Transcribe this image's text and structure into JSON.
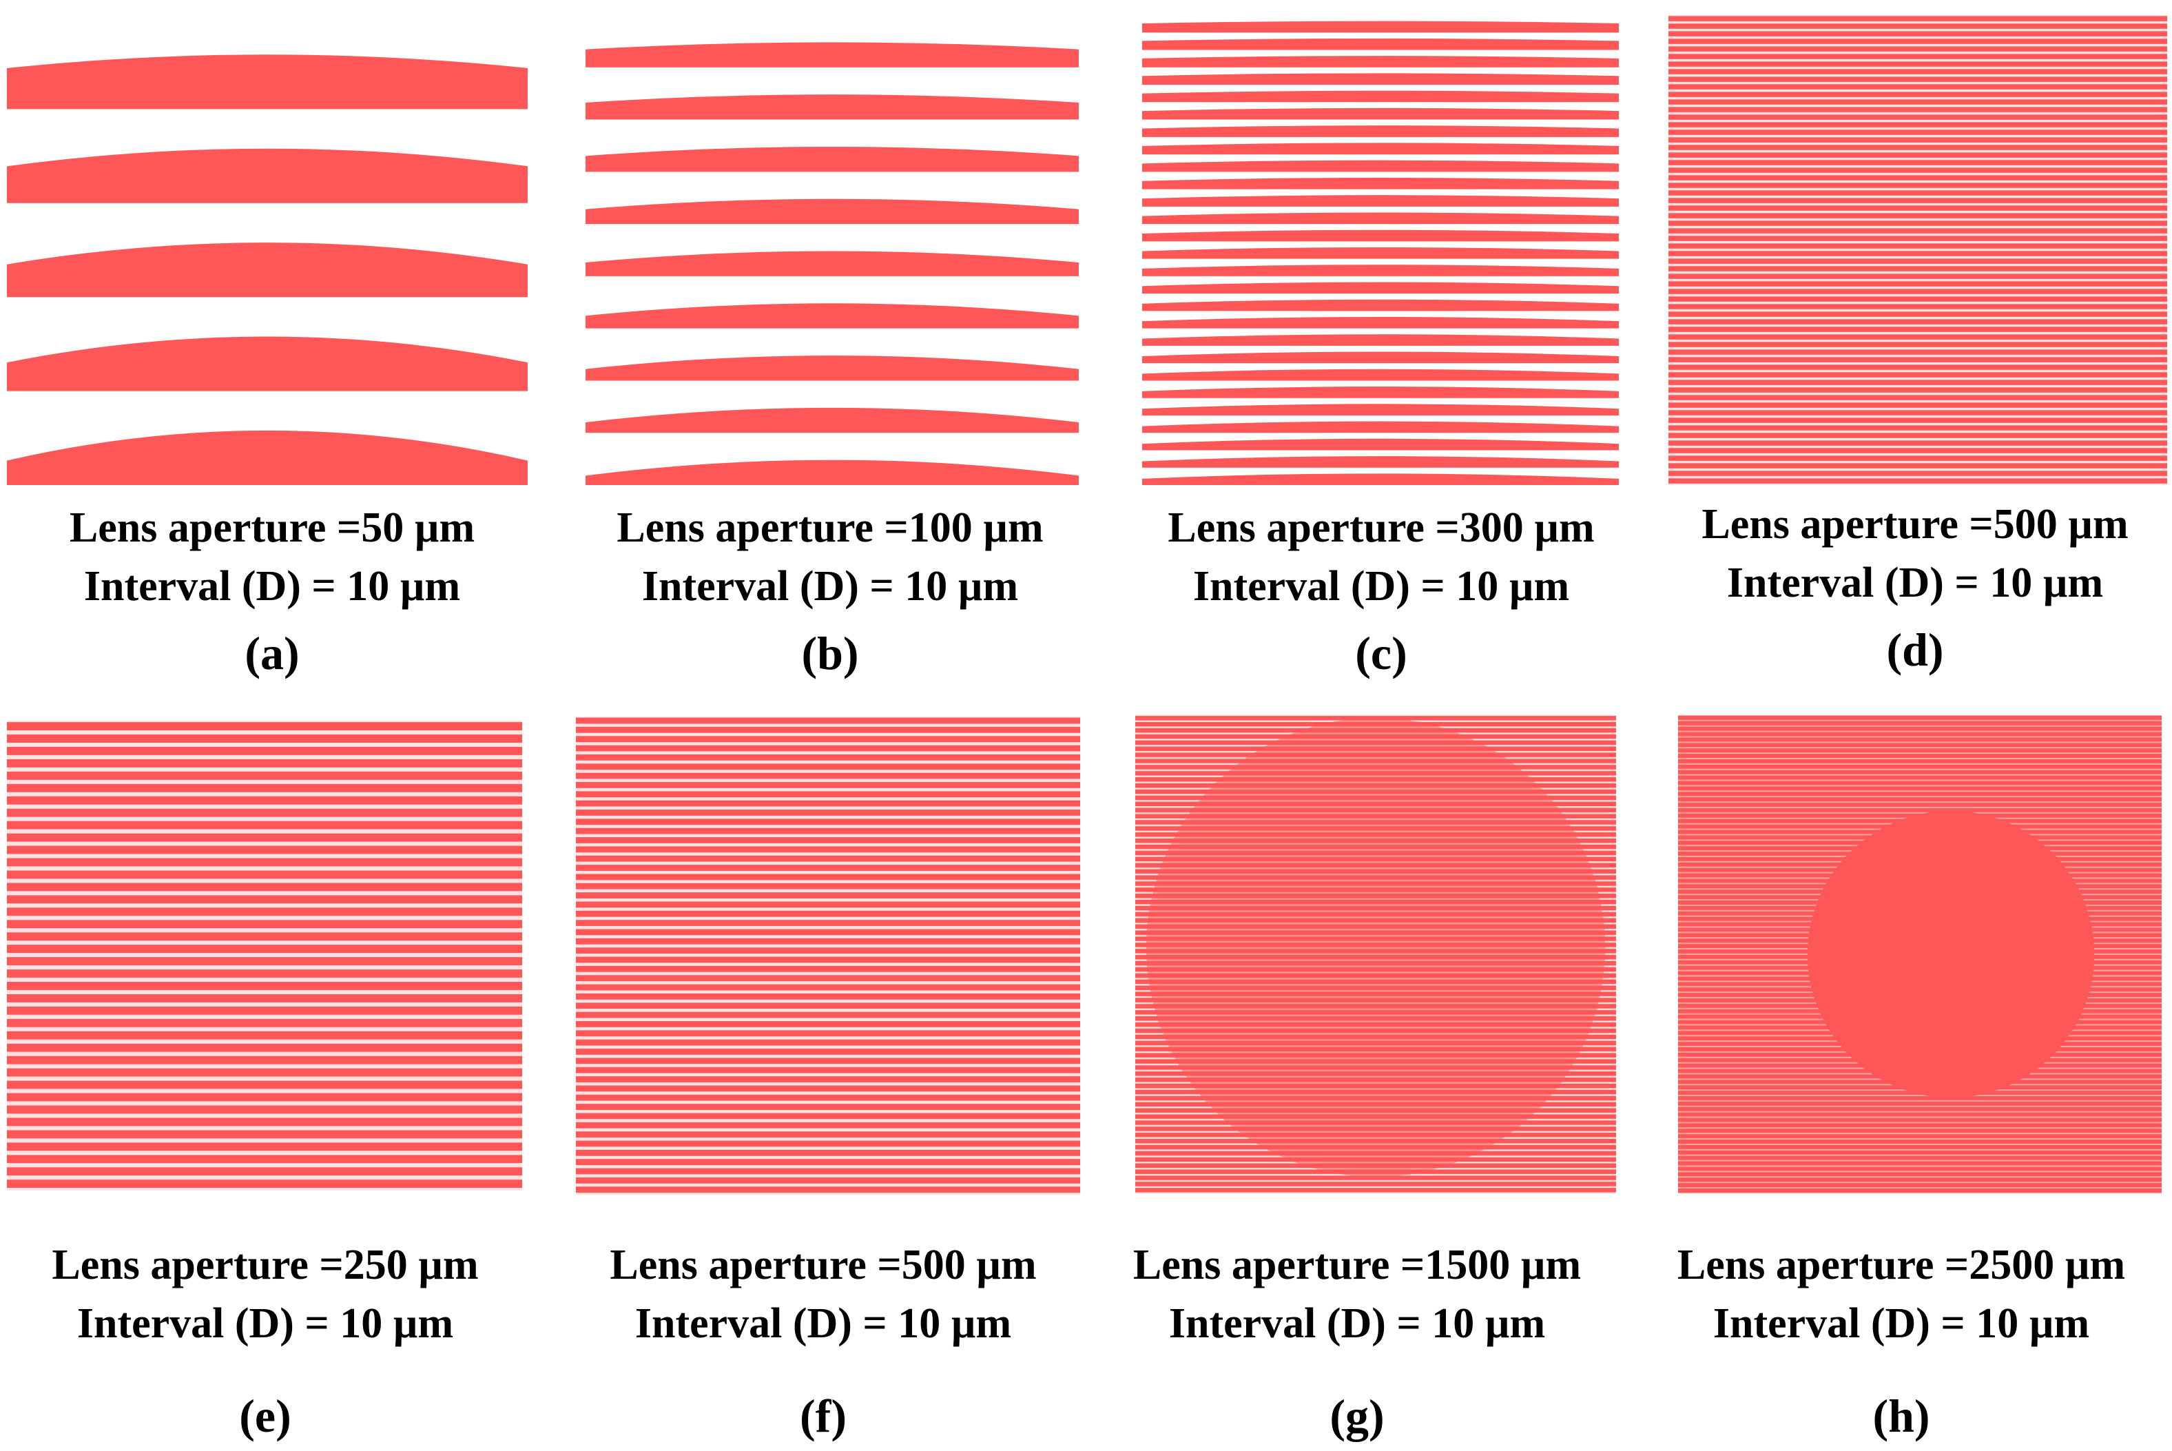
{
  "figure": {
    "stripe_color": "#ff5757",
    "panels": [
      {
        "id": "a",
        "aperture_text": "Lens aperture =50 µm",
        "interval_text": "Interval (D) = 10 µm",
        "label": "(a)",
        "aperture_um": 50,
        "interval_um": 10,
        "stripes": 5,
        "fill_ratio": 0.58,
        "pattern": "arcs"
      },
      {
        "id": "b",
        "aperture_text": "Lens aperture =100 µm",
        "interval_text": "Interval  (D) = 10 µm",
        "label": "(b)",
        "aperture_um": 100,
        "interval_um": 10,
        "stripes": 9,
        "fill_ratio": 0.48,
        "pattern": "arcs"
      },
      {
        "id": "c",
        "aperture_text": "Lens aperture =300 µm",
        "interval_text": "Interval  (D) = 10 µm",
        "label": "(c)",
        "aperture_um": 300,
        "interval_um": 10,
        "stripes": 27,
        "fill_ratio": 0.66,
        "pattern": "arcs"
      },
      {
        "id": "d",
        "aperture_text": "Lens aperture =500 µm",
        "interval_text": "Interval (D) = 10 µm",
        "label": "(d)",
        "aperture_um": 500,
        "interval_um": 10,
        "stripes": 62,
        "fill_ratio": 0.68,
        "pattern": "moire"
      },
      {
        "id": "e",
        "aperture_text": "Lens aperture =250 µm",
        "interval_text": "Interval  (D) = 10 µm",
        "label": "(e)",
        "aperture_um": 250,
        "interval_um": 10,
        "stripes": 38,
        "fill_ratio": 0.66,
        "pattern": "moire"
      },
      {
        "id": "f",
        "aperture_text": "Lens aperture =500 µm",
        "interval_text": "Interval  (D) = 10 µm",
        "label": "(f)",
        "aperture_um": 500,
        "interval_um": 10,
        "stripes": 52,
        "fill_ratio": 0.66,
        "pattern": "moire"
      },
      {
        "id": "g",
        "aperture_text": "Lens aperture =1500 µm",
        "interval_text": "Interval   (D) = 10 µm",
        "label": "(g)",
        "aperture_um": 1500,
        "interval_um": 10,
        "stripes": 78,
        "fill_ratio": 0.72,
        "pattern": "circle"
      },
      {
        "id": "h",
        "aperture_text": "Lens aperture =2500 µm",
        "interval_text": "Interval (D) = 10 µm",
        "label": "(h)",
        "aperture_um": 2500,
        "interval_um": 10,
        "stripes": 88,
        "fill_ratio": 0.74,
        "pattern": "solid-circle"
      }
    ]
  }
}
